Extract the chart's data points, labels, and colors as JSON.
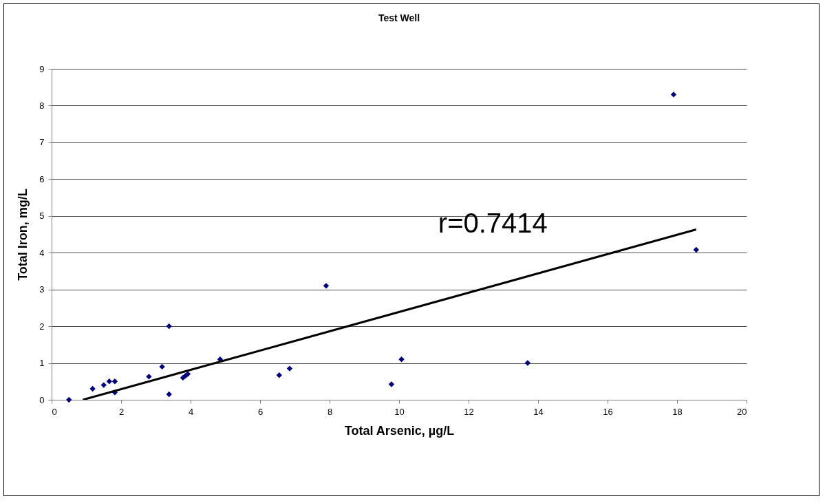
{
  "chart_data": {
    "type": "scatter",
    "title": "Test Well",
    "xlabel": "Total Arsenic, µg/L",
    "ylabel": "Total Iron, mg/L",
    "xlim": [
      0,
      20
    ],
    "xticks": [
      0,
      2,
      4,
      6,
      8,
      10,
      12,
      14,
      16,
      18,
      20
    ],
    "ylim": [
      0,
      9
    ],
    "yticks": [
      0,
      1,
      2,
      3,
      4,
      5,
      6,
      7,
      8,
      9
    ],
    "grid": "y",
    "marker": "diamond",
    "series": [
      {
        "color": "#000080",
        "x": [
          0.5,
          1.18,
          1.5,
          1.66,
          1.82,
          1.82,
          2.8,
          3.18,
          3.38,
          3.38,
          3.78,
          3.85,
          3.92,
          4.85,
          6.55,
          6.85,
          7.9,
          9.78,
          10.07,
          13.7,
          17.9,
          18.55
        ],
        "values": [
          0,
          0.3,
          0.4,
          0.5,
          0.5,
          0.2,
          0.63,
          0.9,
          2.0,
          0.15,
          0.6,
          0.65,
          0.7,
          1.1,
          0.67,
          0.85,
          3.1,
          0.42,
          1.1,
          1.0,
          8.3,
          4.08
        ]
      },
      {
        "type": "line",
        "color": "#000000",
        "marker": "none",
        "x": [
          0.9,
          18.55
        ],
        "values": [
          0,
          4.63
        ]
      }
    ],
    "annotations": [
      "r=0.7414"
    ]
  }
}
